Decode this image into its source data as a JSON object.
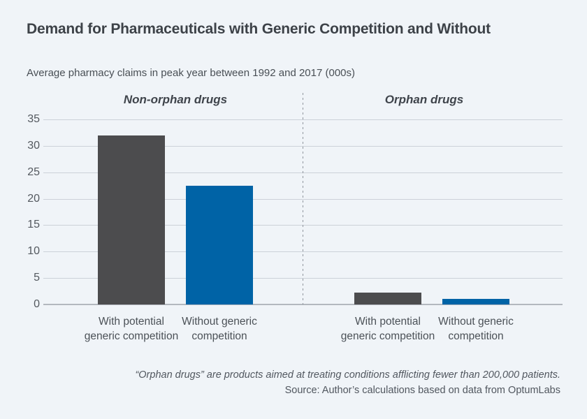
{
  "page": {
    "background_color": "#f0f4f8"
  },
  "chart_data": {
    "type": "bar",
    "title": "Demand for Pharmaceuticals with Generic Competition and Without",
    "subtitle": "Average pharmacy claims in peak year between 1992 and 2017 (000s)",
    "xlabel": "",
    "ylabel": "",
    "ylim": [
      0,
      35
    ],
    "yticks": [
      0,
      5,
      10,
      15,
      20,
      25,
      30,
      35
    ],
    "grid": true,
    "legend": "none",
    "groups": [
      {
        "label": "Non-orphan drugs",
        "bars": [
          {
            "category_lines": [
              "With potential",
              "generic competition"
            ],
            "value": 32,
            "color": "#4c4c4e"
          },
          {
            "category_lines": [
              "Without generic",
              "competition"
            ],
            "value": 22.5,
            "color": "#0063a6"
          }
        ]
      },
      {
        "label": "Orphan drugs",
        "bars": [
          {
            "category_lines": [
              "With potential",
              "generic competition"
            ],
            "value": 2.3,
            "color": "#4c4c4e"
          },
          {
            "category_lines": [
              "Without generic",
              "competition"
            ],
            "value": 1,
            "color": "#0063a6"
          }
        ]
      }
    ],
    "note": "“Orphan drugs” are products aimed at treating conditions afflicting fewer than 200,000 patients.",
    "source": "Source: Author’s calculations based on data from OptumLabs",
    "colors": {
      "bar_dark": "#4c4c4e",
      "bar_blue": "#0063a6",
      "gridline": "#ccd1d8",
      "baseline": "#b3b8bf",
      "divider": "#8f959d"
    }
  }
}
